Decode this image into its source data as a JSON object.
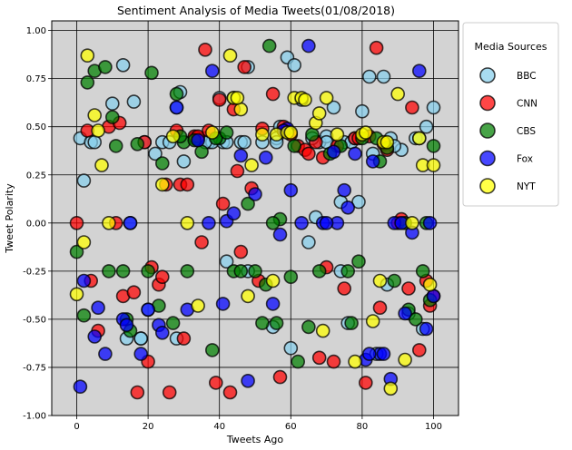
{
  "chart_data": {
    "type": "scatter",
    "title": "Sentiment Analysis of Media Tweets(01/08/2018)",
    "xlabel": "Tweets Ago",
    "ylabel": "Tweet Polarity",
    "xlim": [
      -7,
      107
    ],
    "ylim": [
      -1.0,
      1.05
    ],
    "xticks": [
      0,
      20,
      40,
      60,
      80,
      100
    ],
    "yticks": [
      -1.0,
      -0.75,
      -0.5,
      -0.25,
      0.0,
      0.25,
      0.5,
      0.75,
      1.0
    ],
    "ytick_labels": [
      "-1.00",
      "-0.75",
      "-0.50",
      "-0.25",
      "0.00",
      "0.25",
      "0.50",
      "0.75",
      "1.00"
    ],
    "grid": true,
    "background": "#d3d3d3",
    "legend": {
      "title": "Media Sources",
      "placement": "outside-right-top"
    },
    "series": [
      {
        "name": "BBC",
        "color": "#87ceeb",
        "x": [
          1,
          2,
          4,
          5,
          10,
          13,
          14,
          16,
          18,
          19,
          20,
          22,
          24,
          26,
          28,
          29,
          30,
          33,
          36,
          37,
          38,
          40,
          41,
          44,
          46,
          48,
          52,
          55,
          57,
          59,
          61,
          63,
          65,
          68,
          70,
          72,
          74,
          75,
          77,
          79,
          82,
          83,
          86,
          88,
          91,
          93,
          97,
          98,
          100,
          36,
          42,
          47,
          56,
          66,
          70,
          76,
          80,
          89,
          95,
          15,
          18,
          28,
          34,
          42,
          48,
          56,
          60,
          67,
          74,
          78,
          84,
          87,
          96
        ],
        "y": [
          0.44,
          0.22,
          0.42,
          0.42,
          0.62,
          0.82,
          -0.6,
          0.63,
          -0.6,
          0.42,
          -0.45,
          0.36,
          0.42,
          0.42,
          -0.6,
          0.68,
          0.32,
          0.44,
          0.44,
          0.42,
          0.42,
          0.65,
          0.42,
          0.65,
          0.42,
          0.81,
          0.42,
          -0.54,
          0.5,
          0.86,
          0.82,
          0.64,
          -0.1,
          0.42,
          0.45,
          0.6,
          0.11,
          0.42,
          0.42,
          0.11,
          0.76,
          0.36,
          0.76,
          0.44,
          0.38,
          -0.47,
          -0.55,
          0.5,
          0.6,
          0.42,
          0.42,
          0.42,
          0.44,
          0.44,
          0.42,
          -0.52,
          0.58,
          0.4,
          0.44,
          0.0,
          -0.6,
          0.6,
          0.44,
          -0.2,
          -0.25,
          0.42,
          -0.65,
          0.03,
          -0.25,
          0.44,
          -0.68,
          -0.32,
          0.44
        ]
      },
      {
        "name": "CNN",
        "color": "#ff0000",
        "x": [
          0,
          3,
          4,
          6,
          9,
          12,
          13,
          16,
          17,
          19,
          20,
          21,
          23,
          24,
          25,
          26,
          28,
          29,
          31,
          33,
          34,
          35,
          36,
          37,
          39,
          40,
          41,
          43,
          45,
          46,
          47,
          49,
          51,
          52,
          55,
          57,
          58,
          60,
          62,
          64,
          65,
          67,
          68,
          70,
          72,
          73,
          75,
          78,
          79,
          81,
          82,
          84,
          86,
          87,
          90,
          91,
          93,
          94,
          96,
          98,
          100,
          11,
          30,
          44,
          58,
          69,
          85,
          99
        ],
        "y": [
          0.0,
          0.48,
          -0.3,
          -0.56,
          0.5,
          0.52,
          -0.38,
          -0.36,
          -0.88,
          0.42,
          -0.72,
          -0.23,
          -0.32,
          -0.28,
          0.2,
          -0.88,
          0.48,
          0.2,
          0.2,
          0.45,
          0.45,
          -0.1,
          0.9,
          0.48,
          -0.83,
          0.64,
          0.1,
          -0.88,
          0.27,
          -0.15,
          0.81,
          0.18,
          -0.3,
          0.49,
          0.67,
          -0.8,
          0.48,
          0.46,
          0.4,
          0.38,
          0.36,
          0.42,
          -0.7,
          -0.23,
          -0.72,
          0.4,
          -0.34,
          0.44,
          0.44,
          -0.83,
          0.45,
          0.91,
          0.41,
          0.38,
          0.0,
          0.02,
          -0.34,
          0.6,
          -0.66,
          -0.3,
          -0.38,
          0.0,
          -0.6,
          0.59,
          0.5,
          0.34,
          -0.44,
          -0.43
        ]
      },
      {
        "name": "CBS",
        "color": "#008000",
        "x": [
          0,
          2,
          3,
          5,
          8,
          9,
          10,
          13,
          14,
          17,
          20,
          21,
          23,
          24,
          27,
          28,
          30,
          31,
          33,
          35,
          38,
          40,
          44,
          46,
          48,
          50,
          52,
          53,
          54,
          56,
          57,
          60,
          62,
          65,
          66,
          68,
          71,
          74,
          77,
          79,
          80,
          84,
          87,
          89,
          93,
          95,
          97,
          99,
          100,
          11,
          15,
          29,
          39,
          42,
          55,
          61,
          76,
          85,
          92,
          98
        ],
        "y": [
          -0.15,
          -0.48,
          0.73,
          0.79,
          0.81,
          -0.25,
          0.55,
          -0.25,
          -0.5,
          0.41,
          -0.25,
          0.78,
          -0.43,
          0.31,
          -0.52,
          0.67,
          0.42,
          -0.25,
          0.43,
          0.37,
          -0.66,
          0.44,
          -0.25,
          -0.25,
          0.1,
          -0.25,
          -0.52,
          -0.32,
          0.92,
          -0.52,
          0.02,
          -0.28,
          -0.72,
          -0.54,
          0.46,
          -0.25,
          0.36,
          0.4,
          -0.52,
          -0.2,
          0.44,
          0.44,
          0.39,
          -0.3,
          -0.45,
          -0.5,
          -0.25,
          -0.4,
          0.4,
          0.4,
          -0.56,
          0.45,
          0.44,
          0.47,
          0.0,
          0.4,
          -0.25,
          0.32,
          0.0,
          0.0
        ]
      },
      {
        "name": "Fox",
        "color": "#0000ff",
        "x": [
          1,
          2,
          5,
          6,
          8,
          13,
          14,
          18,
          20,
          23,
          28,
          31,
          34,
          38,
          41,
          42,
          46,
          48,
          50,
          53,
          55,
          57,
          59,
          60,
          63,
          65,
          69,
          72,
          73,
          75,
          76,
          78,
          81,
          83,
          85,
          86,
          88,
          89,
          92,
          94,
          96,
          98,
          100,
          15,
          24,
          37,
          44,
          58,
          70,
          82,
          91,
          99
        ],
        "y": [
          -0.85,
          -0.3,
          -0.59,
          -0.44,
          -0.68,
          -0.5,
          -0.53,
          -0.68,
          -0.45,
          -0.53,
          0.6,
          -0.45,
          0.43,
          0.79,
          -0.42,
          0.01,
          0.35,
          -0.82,
          0.15,
          0.34,
          -0.42,
          -0.06,
          0.49,
          0.17,
          0.0,
          0.92,
          0.0,
          0.37,
          0.0,
          0.17,
          0.08,
          0.36,
          -0.71,
          0.32,
          -0.68,
          -0.68,
          -0.81,
          0.0,
          -0.47,
          -0.05,
          0.79,
          -0.55,
          -0.38,
          0.0,
          -0.57,
          0.0,
          0.05,
          0.48,
          0.0,
          -0.68,
          0.0,
          0.0
        ]
      },
      {
        "name": "NYT",
        "color": "#ffff00",
        "x": [
          0,
          2,
          3,
          5,
          6,
          9,
          24,
          34,
          43,
          44,
          46,
          48,
          49,
          52,
          55,
          56,
          59,
          61,
          63,
          64,
          67,
          69,
          70,
          73,
          78,
          80,
          83,
          85,
          86,
          88,
          90,
          92,
          96,
          97,
          99,
          100,
          7,
          27,
          31,
          38,
          45,
          60,
          68,
          81,
          87,
          94
        ],
        "y": [
          -0.37,
          -0.1,
          0.87,
          0.56,
          0.48,
          0.0,
          0.2,
          -0.43,
          0.87,
          0.65,
          0.59,
          -0.38,
          0.3,
          0.46,
          -0.3,
          0.46,
          0.47,
          0.65,
          0.65,
          0.64,
          0.52,
          -0.56,
          0.65,
          0.46,
          -0.72,
          0.46,
          -0.51,
          -0.3,
          0.42,
          -0.86,
          0.67,
          -0.71,
          0.44,
          0.3,
          -0.32,
          0.3,
          0.3,
          0.45,
          0.0,
          0.47,
          0.65,
          0.47,
          0.57,
          0.47,
          0.42,
          0.0
        ]
      }
    ]
  }
}
